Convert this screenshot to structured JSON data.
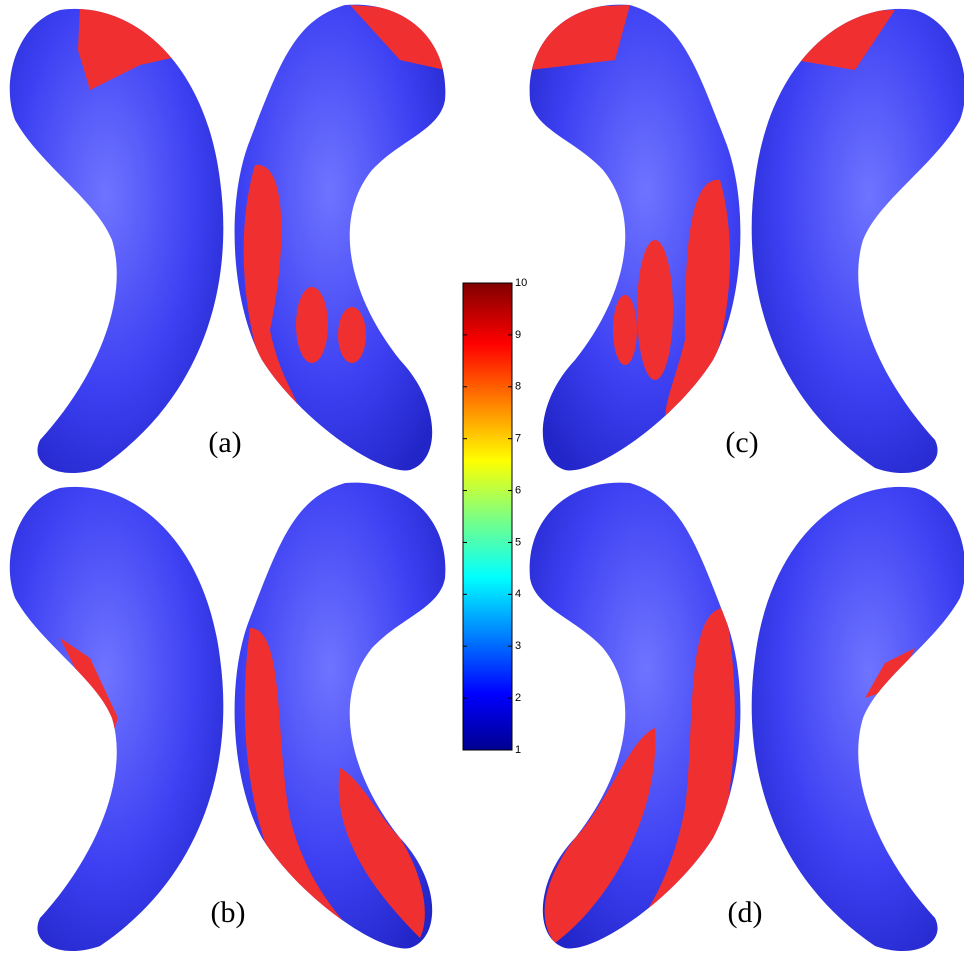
{
  "panels": [
    {
      "label": "(a)"
    },
    {
      "label": "(b)"
    },
    {
      "label": "(c)"
    },
    {
      "label": "(d)"
    }
  ],
  "colorbar": {
    "range": [
      1,
      10
    ],
    "ticks": [
      1,
      2,
      3,
      4,
      5,
      6,
      7,
      8,
      9,
      10
    ]
  }
}
